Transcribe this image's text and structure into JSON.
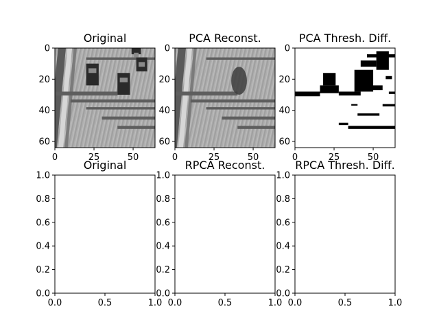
{
  "figure": {
    "background": "#ffffff"
  },
  "chart_data": [
    {
      "type": "heatmap",
      "title": "Original",
      "colormap": "gray",
      "xlim": [
        0,
        64
      ],
      "ylim": [
        64,
        0
      ],
      "xticks": [
        0,
        25,
        50
      ],
      "yticks": [
        0,
        20,
        40,
        60
      ],
      "content": "highway-traffic-grayscale-frame"
    },
    {
      "type": "heatmap",
      "title": "PCA Reconst.",
      "colormap": "gray",
      "xlim": [
        0,
        64
      ],
      "ylim": [
        64,
        0
      ],
      "xticks": [
        0,
        25,
        50
      ],
      "yticks": [
        0,
        20,
        40,
        60
      ],
      "content": "highway-background-reconstruction"
    },
    {
      "type": "heatmap",
      "title": "PCA Thresh. Diff.",
      "colormap": "binary",
      "xlim": [
        0,
        64
      ],
      "ylim": [
        64,
        0
      ],
      "xticks": [
        0,
        25,
        50
      ],
      "yticks": [
        0,
        20,
        40,
        60
      ],
      "content": "binary-difference-mask"
    },
    {
      "type": "line",
      "title": "Original",
      "empty": true,
      "xlim": [
        0,
        1
      ],
      "ylim": [
        0,
        1
      ],
      "xticks": [
        "0.0",
        "0.5",
        "1.0"
      ],
      "yticks": [
        "0.0",
        "0.2",
        "0.4",
        "0.6",
        "0.8",
        "1.0"
      ]
    },
    {
      "type": "line",
      "title": "RPCA Reconst.",
      "empty": true,
      "xlim": [
        0,
        1
      ],
      "ylim": [
        0,
        1
      ],
      "xticks": [
        "0.0",
        "0.5",
        "1.0"
      ],
      "yticks": [
        "0.0",
        "0.2",
        "0.4",
        "0.6",
        "0.8",
        "1.0"
      ]
    },
    {
      "type": "line",
      "title": "RPCA Thresh. Diff.",
      "empty": true,
      "xlim": [
        0,
        1
      ],
      "ylim": [
        0,
        1
      ],
      "xticks": [
        "0.0",
        "0.5",
        "1.0"
      ],
      "yticks": [
        "0.0",
        "0.2",
        "0.4",
        "0.6",
        "0.8",
        "1.0"
      ]
    }
  ]
}
